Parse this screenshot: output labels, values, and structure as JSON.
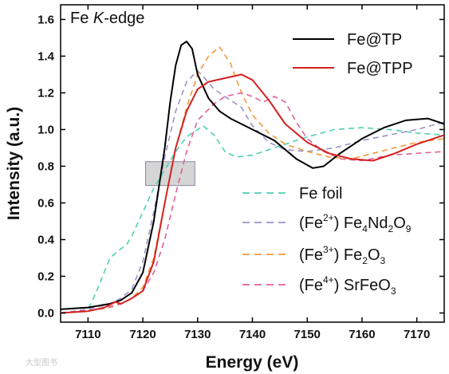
{
  "chart_data": {
    "type": "line",
    "title": "Fe K-edge",
    "title_parts": {
      "element": "Fe ",
      "edge": "K",
      "suffix": "-edge"
    },
    "xlabel": "Energy (eV)",
    "ylabel": "Intensity (a.u.)",
    "xlim": [
      7105,
      7175
    ],
    "ylim": [
      -0.05,
      1.68
    ],
    "xticks": [
      7110,
      7120,
      7130,
      7140,
      7150,
      7160,
      7170
    ],
    "yticks": [
      0.0,
      0.2,
      0.4,
      0.6,
      0.8,
      1.0,
      1.2,
      1.4,
      1.6
    ],
    "ytick_labels": [
      "0.0",
      "0.2",
      "0.4",
      "0.6",
      "0.8",
      "1.0",
      "1.2",
      "1.4",
      "1.6"
    ],
    "xtick_labels": [
      "7110",
      "7120",
      "7130",
      "7140",
      "7150",
      "7160",
      "7170"
    ],
    "grid": false,
    "highlight_box": {
      "x": [
        7120.5,
        7129.5
      ],
      "y": [
        0.695,
        0.825
      ]
    },
    "series": [
      {
        "name": "Fe@TP",
        "color": "#000000",
        "style": "solid",
        "points": [
          [
            7105,
            0.02
          ],
          [
            7110,
            0.03
          ],
          [
            7114,
            0.05
          ],
          [
            7116,
            0.07
          ],
          [
            7118,
            0.11
          ],
          [
            7120,
            0.22
          ],
          [
            7122,
            0.5
          ],
          [
            7124,
            0.9
          ],
          [
            7125,
            1.15
          ],
          [
            7126,
            1.35
          ],
          [
            7127,
            1.46
          ],
          [
            7128,
            1.48
          ],
          [
            7129,
            1.44
          ],
          [
            7130,
            1.3
          ],
          [
            7132,
            1.17
          ],
          [
            7134,
            1.1
          ],
          [
            7136,
            1.06
          ],
          [
            7140,
            1.0
          ],
          [
            7144,
            0.94
          ],
          [
            7148,
            0.84
          ],
          [
            7151,
            0.79
          ],
          [
            7153,
            0.8
          ],
          [
            7156,
            0.87
          ],
          [
            7160,
            0.95
          ],
          [
            7164,
            1.01
          ],
          [
            7168,
            1.05
          ],
          [
            7172,
            1.06
          ],
          [
            7175,
            1.03
          ]
        ]
      },
      {
        "name": "Fe@TPP",
        "color": "#d42020",
        "style": "solid",
        "points": [
          [
            7105,
            0.0
          ],
          [
            7110,
            0.01
          ],
          [
            7113,
            0.03
          ],
          [
            7115,
            0.06
          ],
          [
            7116,
            0.05
          ],
          [
            7118,
            0.08
          ],
          [
            7120,
            0.12
          ],
          [
            7122,
            0.28
          ],
          [
            7124,
            0.6
          ],
          [
            7126,
            0.9
          ],
          [
            7128,
            1.1
          ],
          [
            7130,
            1.22
          ],
          [
            7132,
            1.26
          ],
          [
            7135,
            1.28
          ],
          [
            7138,
            1.3
          ],
          [
            7140,
            1.27
          ],
          [
            7143,
            1.16
          ],
          [
            7146,
            1.03
          ],
          [
            7150,
            0.93
          ],
          [
            7154,
            0.87
          ],
          [
            7158,
            0.84
          ],
          [
            7162,
            0.83
          ],
          [
            7166,
            0.87
          ],
          [
            7170,
            0.92
          ],
          [
            7173,
            0.95
          ],
          [
            7175,
            0.97
          ]
        ]
      },
      {
        "name": "Fe foil",
        "color": "#4fd1b0",
        "style": "dashed",
        "points": [
          [
            7105,
            0.0
          ],
          [
            7110,
            0.02
          ],
          [
            7111,
            0.08
          ],
          [
            7112,
            0.15
          ],
          [
            7114,
            0.3
          ],
          [
            7116,
            0.35
          ],
          [
            7117,
            0.37
          ],
          [
            7118,
            0.42
          ],
          [
            7120,
            0.55
          ],
          [
            7122,
            0.68
          ],
          [
            7124,
            0.78
          ],
          [
            7126,
            0.88
          ],
          [
            7128,
            0.96
          ],
          [
            7130,
            1.0
          ],
          [
            7131,
            1.02
          ],
          [
            7133,
            0.97
          ],
          [
            7135,
            0.88
          ],
          [
            7137,
            0.85
          ],
          [
            7140,
            0.86
          ],
          [
            7145,
            0.91
          ],
          [
            7150,
            0.96
          ],
          [
            7155,
            1.0
          ],
          [
            7160,
            1.01
          ],
          [
            7165,
            1.0
          ],
          [
            7170,
            0.98
          ],
          [
            7175,
            0.97
          ]
        ]
      },
      {
        "name": "(Fe²⁺) Fe₄Nd₂O₉",
        "color": "#9a92c8",
        "style": "dashed",
        "points": [
          [
            7105,
            0.0
          ],
          [
            7110,
            0.02
          ],
          [
            7114,
            0.05
          ],
          [
            7116,
            0.08
          ],
          [
            7118,
            0.13
          ],
          [
            7120,
            0.28
          ],
          [
            7122,
            0.55
          ],
          [
            7124,
            0.85
          ],
          [
            7126,
            1.1
          ],
          [
            7128,
            1.26
          ],
          [
            7130,
            1.32
          ],
          [
            7131,
            1.29
          ],
          [
            7133,
            1.22
          ],
          [
            7136,
            1.16
          ],
          [
            7138,
            1.12
          ],
          [
            7140,
            1.02
          ],
          [
            7143,
            0.93
          ],
          [
            7146,
            0.89
          ],
          [
            7150,
            0.88
          ],
          [
            7155,
            0.9
          ],
          [
            7160,
            0.94
          ],
          [
            7165,
            0.97
          ],
          [
            7170,
            1.0
          ],
          [
            7175,
            1.04
          ]
        ]
      },
      {
        "name": "(Fe³⁺) Fe₂O₃",
        "color": "#f09a3c",
        "style": "dashed",
        "points": [
          [
            7105,
            0.0
          ],
          [
            7110,
            0.01
          ],
          [
            7114,
            0.03
          ],
          [
            7116,
            0.05
          ],
          [
            7118,
            0.08
          ],
          [
            7120,
            0.14
          ],
          [
            7122,
            0.3
          ],
          [
            7124,
            0.6
          ],
          [
            7126,
            0.9
          ],
          [
            7128,
            1.12
          ],
          [
            7130,
            1.3
          ],
          [
            7132,
            1.4
          ],
          [
            7134,
            1.45
          ],
          [
            7136,
            1.36
          ],
          [
            7138,
            1.2
          ],
          [
            7140,
            1.08
          ],
          [
            7143,
            0.98
          ],
          [
            7146,
            0.92
          ],
          [
            7150,
            0.88
          ],
          [
            7154,
            0.85
          ],
          [
            7158,
            0.84
          ],
          [
            7162,
            0.87
          ],
          [
            7166,
            0.9
          ],
          [
            7170,
            0.93
          ],
          [
            7175,
            0.95
          ]
        ]
      },
      {
        "name": "(Fe⁴⁺) SrFeO₃",
        "color": "#e0609a",
        "style": "dashed",
        "points": [
          [
            7105,
            0.0
          ],
          [
            7112,
            0.02
          ],
          [
            7116,
            0.05
          ],
          [
            7118,
            0.08
          ],
          [
            7120,
            0.12
          ],
          [
            7122,
            0.22
          ],
          [
            7124,
            0.4
          ],
          [
            7126,
            0.65
          ],
          [
            7128,
            0.88
          ],
          [
            7130,
            1.05
          ],
          [
            7133,
            1.14
          ],
          [
            7135,
            1.18
          ],
          [
            7138,
            1.2
          ],
          [
            7140,
            1.18
          ],
          [
            7142,
            1.15
          ],
          [
            7144,
            1.18
          ],
          [
            7146,
            1.15
          ],
          [
            7148,
            1.04
          ],
          [
            7150,
            0.95
          ],
          [
            7153,
            0.88
          ],
          [
            7156,
            0.84
          ],
          [
            7160,
            0.83
          ],
          [
            7165,
            0.86
          ],
          [
            7170,
            0.87
          ],
          [
            7175,
            0.88
          ]
        ]
      }
    ],
    "legend": [
      {
        "name": "Fe@TP",
        "color": "#000000",
        "style": "solid",
        "parts": [
          {
            "t": "Fe@TP",
            "k": "n"
          }
        ]
      },
      {
        "name": "Fe@TPP",
        "color": "#d42020",
        "style": "solid",
        "parts": [
          {
            "t": "Fe@TPP",
            "k": "n"
          }
        ]
      },
      {
        "name": "Fe foil",
        "color": "#4fd1b0",
        "style": "dashed",
        "parts": [
          {
            "t": "Fe foil",
            "k": "n"
          }
        ]
      },
      {
        "name": "(Fe2+) Fe4Nd2O9",
        "color": "#9a92c8",
        "style": "dashed",
        "parts": [
          {
            "t": "(Fe",
            "k": "n"
          },
          {
            "t": "2+",
            "k": "sup"
          },
          {
            "t": ") Fe",
            "k": "n"
          },
          {
            "t": "4",
            "k": "sub"
          },
          {
            "t": "Nd",
            "k": "n"
          },
          {
            "t": "2",
            "k": "sub"
          },
          {
            "t": "O",
            "k": "n"
          },
          {
            "t": "9",
            "k": "sub"
          }
        ]
      },
      {
        "name": "(Fe3+) Fe2O3",
        "color": "#f09a3c",
        "style": "dashed",
        "parts": [
          {
            "t": "(Fe",
            "k": "n"
          },
          {
            "t": "3+",
            "k": "sup"
          },
          {
            "t": ") Fe",
            "k": "n"
          },
          {
            "t": "2",
            "k": "sub"
          },
          {
            "t": "O",
            "k": "n"
          },
          {
            "t": "3",
            "k": "sub"
          }
        ]
      },
      {
        "name": "(Fe4+) SrFeO3",
        "color": "#e0609a",
        "style": "dashed",
        "parts": [
          {
            "t": "(Fe",
            "k": "n"
          },
          {
            "t": "4+",
            "k": "sup"
          },
          {
            "t": ") SrFeO",
            "k": "n"
          },
          {
            "t": "3",
            "k": "sub"
          }
        ]
      }
    ]
  },
  "watermark": "大型图书"
}
